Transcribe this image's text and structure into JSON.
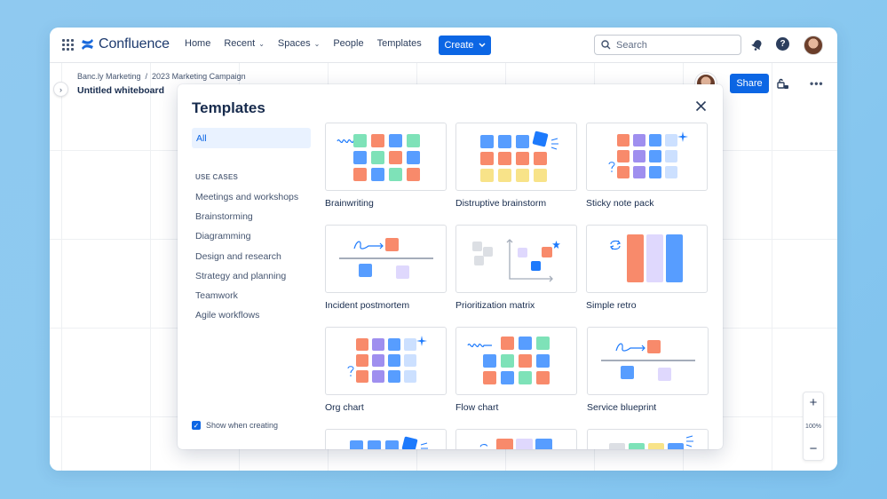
{
  "app": {
    "logo_text": "Confluence",
    "nav": [
      {
        "label": "Home",
        "dropdown": false
      },
      {
        "label": "Recent",
        "dropdown": true
      },
      {
        "label": "Spaces",
        "dropdown": true
      },
      {
        "label": "People",
        "dropdown": false
      },
      {
        "label": "Templates",
        "dropdown": false
      }
    ],
    "create_label": "Create",
    "search_placeholder": "Search"
  },
  "board": {
    "breadcrumbs": [
      "Banc.ly Marketing",
      "/",
      "2023 Marketing Campaign"
    ],
    "title": "Untitled whiteboard",
    "share_label": "Share",
    "zoom_in": "+",
    "zoom_level": "100%",
    "zoom_out": "−"
  },
  "modal": {
    "title": "Templates",
    "all_label": "All",
    "use_cases_heading": "USE CASES",
    "use_cases": [
      "Meetings and workshops",
      "Brainstorming",
      "Diagramming",
      "Design and research",
      "Strategy and planning",
      "Teamwork",
      "Agile workflows"
    ],
    "show_when_creating": "Show when creating",
    "show_when_creating_checked": true,
    "templates": [
      "Brainwriting",
      "Distruptive brainstorm",
      "Sticky note pack",
      "Incident postmortem",
      "Prioritization matrix",
      "Simple retro",
      "Org chart",
      "Flow chart",
      "Service blueprint"
    ]
  },
  "colors": {
    "primary": "#0c66e4",
    "sticky_blue": "#579dff",
    "sticky_orange": "#f88a6b",
    "sticky_green": "#7ee2b8",
    "sticky_yellow": "#f8e389",
    "sticky_purple": "#9f8fef",
    "sticky_lilac": "#dfd8fd",
    "sticky_lightblue": "#cce0ff"
  }
}
